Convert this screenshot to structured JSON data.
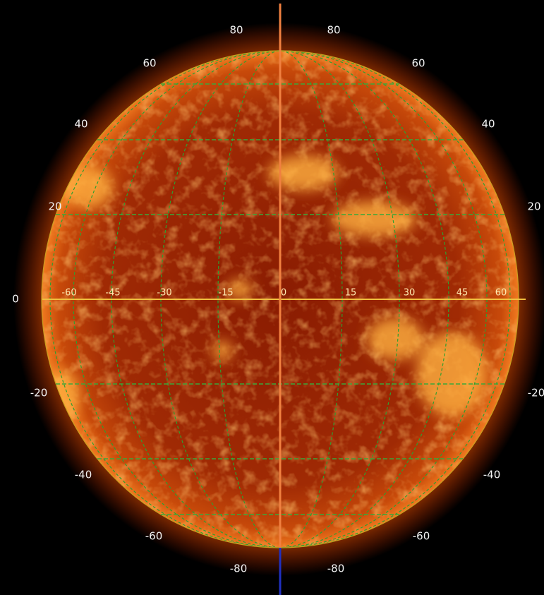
{
  "latitude_labels_left": [
    "80",
    "60",
    "40",
    "20",
    "0",
    "-20",
    "-40",
    "-60",
    "-80"
  ],
  "latitude_labels_right": [
    "80",
    "60",
    "40",
    "20",
    "-20",
    "-40",
    "-60",
    "-80"
  ],
  "longitude_labels": [
    "-60",
    "-45",
    "-30",
    "-15",
    "0",
    "15",
    "30",
    "45",
    "60"
  ]
}
